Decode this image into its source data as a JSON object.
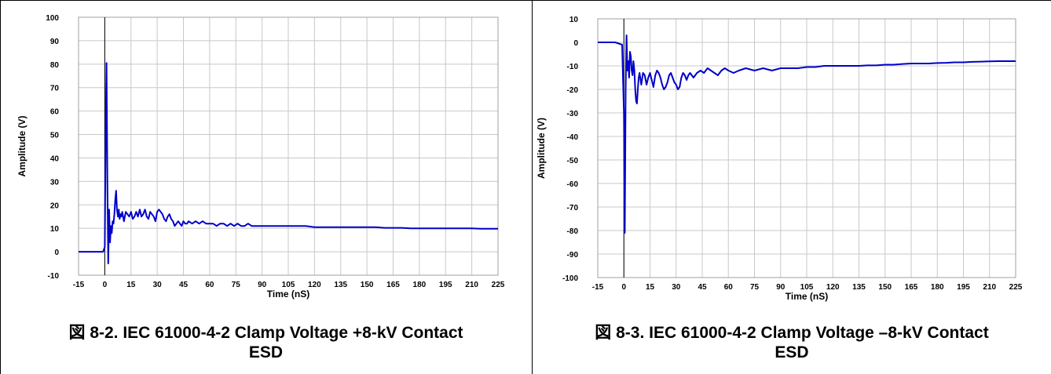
{
  "chart_data": [
    {
      "type": "line",
      "title": "",
      "xlabel": "Time (nS)",
      "ylabel": "Amplitude (V)",
      "xlim": [
        -15,
        225
      ],
      "ylim": [
        -10,
        100
      ],
      "xticks": [
        -15,
        0,
        15,
        30,
        45,
        60,
        75,
        90,
        105,
        120,
        135,
        150,
        165,
        180,
        195,
        210,
        225
      ],
      "yticks": [
        -10,
        0,
        10,
        20,
        30,
        40,
        50,
        60,
        70,
        80,
        90,
        100
      ],
      "grid": true,
      "legend": "none",
      "color": "#0000c8",
      "series": [
        {
          "x": [
            -15,
            -10,
            -5,
            -1,
            0,
            0.5,
            1.0,
            1.5,
            2.0,
            2.5,
            3.0,
            3.5,
            4,
            4.5,
            5,
            5.5,
            6,
            6.5,
            7,
            7.5,
            8,
            8.5,
            9,
            9.5,
            10,
            11,
            12,
            13,
            14,
            15,
            16,
            17,
            18,
            19,
            20,
            21,
            22,
            23,
            24,
            25,
            26,
            27,
            28,
            29,
            30,
            31,
            32,
            33,
            34,
            35,
            36,
            37,
            38,
            39,
            40,
            41,
            42,
            43,
            44,
            45,
            46,
            47,
            48,
            50,
            52,
            54,
            56,
            58,
            60,
            62,
            64,
            66,
            68,
            70,
            72,
            74,
            76,
            78,
            80,
            82,
            84,
            86,
            88,
            90,
            93,
            96,
            100,
            105,
            110,
            115,
            120,
            125,
            130,
            135,
            140,
            145,
            150,
            155,
            160,
            165,
            170,
            175,
            180,
            185,
            190,
            195,
            200,
            205,
            210,
            215,
            220,
            225
          ],
          "y": [
            0,
            0,
            0,
            0,
            2,
            50,
            80.5,
            30,
            -5,
            18,
            4,
            11,
            8,
            13,
            12,
            16,
            22,
            26,
            18,
            15,
            18,
            14,
            16,
            15,
            17,
            13,
            17,
            16,
            15,
            17,
            14,
            15,
            17,
            15,
            18,
            15,
            16,
            18,
            15,
            14,
            17,
            16,
            15,
            13,
            17,
            18,
            17,
            16,
            14,
            13,
            15,
            16,
            14,
            13,
            11,
            12,
            13,
            12,
            11,
            13,
            12,
            12,
            13,
            12,
            13,
            12,
            13,
            12,
            12,
            12,
            11,
            12,
            12,
            11,
            12,
            11,
            12,
            11,
            11,
            12,
            11,
            11,
            11,
            11,
            11,
            11,
            11,
            11,
            11,
            11,
            10.5,
            10.5,
            10.5,
            10.5,
            10.5,
            10.5,
            10.5,
            10.5,
            10.2,
            10.2,
            10.2,
            10,
            10,
            10,
            10,
            10,
            10,
            10,
            10,
            9.8,
            9.8,
            9.8
          ]
        }
      ]
    },
    {
      "type": "line",
      "title": "",
      "xlabel": "Time (nS)",
      "ylabel": "Amplitude (V)",
      "xlim": [
        -15,
        225
      ],
      "ylim": [
        -100,
        10
      ],
      "xticks": [
        -15,
        0,
        15,
        30,
        45,
        60,
        75,
        90,
        105,
        120,
        135,
        150,
        165,
        180,
        195,
        210,
        225
      ],
      "yticks": [
        -100,
        -90,
        -80,
        -70,
        -60,
        -50,
        -40,
        -30,
        -20,
        -10,
        0,
        10
      ],
      "grid": true,
      "legend": "none",
      "color": "#0000c8",
      "series": [
        {
          "x": [
            -15,
            -10,
            -5,
            -1,
            0,
            0.5,
            1,
            1.5,
            2,
            2.5,
            3,
            3.5,
            4,
            4.5,
            5,
            5.5,
            6,
            6.5,
            7,
            7.5,
            8,
            8.5,
            9,
            10,
            11,
            12,
            13,
            14,
            15,
            16,
            17,
            18,
            19,
            20,
            21,
            22,
            23,
            24,
            25,
            26,
            27,
            28,
            29,
            30,
            31,
            32,
            33,
            34,
            35,
            36,
            37,
            38,
            40,
            42,
            44,
            46,
            48,
            50,
            52,
            54,
            56,
            58,
            60,
            63,
            66,
            70,
            75,
            80,
            85,
            90,
            95,
            100,
            105,
            110,
            115,
            120,
            125,
            130,
            135,
            140,
            145,
            150,
            155,
            160,
            165,
            170,
            175,
            180,
            185,
            190,
            195,
            200,
            205,
            210,
            215,
            220,
            225
          ],
          "y": [
            0,
            0,
            0,
            -1,
            -30,
            -81,
            -20,
            3,
            -12,
            -8,
            -15,
            -4,
            -6,
            -12,
            -14,
            -8,
            -12,
            -20,
            -25,
            -26,
            -20,
            -15,
            -13,
            -18,
            -13,
            -14,
            -18,
            -15,
            -13,
            -16,
            -19,
            -14,
            -12,
            -13,
            -15,
            -18,
            -20,
            -19,
            -17,
            -14,
            -13,
            -15,
            -17,
            -18,
            -20,
            -19,
            -15,
            -13,
            -14,
            -16,
            -14,
            -13,
            -15,
            -13,
            -12,
            -13,
            -11,
            -12,
            -13,
            -14,
            -12,
            -11,
            -12,
            -13,
            -12,
            -11,
            -12,
            -11,
            -12,
            -11,
            -11,
            -11,
            -10.5,
            -10.5,
            -10,
            -10,
            -10,
            -10,
            -10,
            -9.8,
            -9.8,
            -9.5,
            -9.5,
            -9.2,
            -9,
            -9,
            -9,
            -8.8,
            -8.7,
            -8.5,
            -8.5,
            -8.3,
            -8.2,
            -8.1,
            -8,
            -8,
            -8
          ]
        }
      ]
    }
  ],
  "captions": {
    "left_line1": "図 8-2. IEC 61000-4-2 Clamp Voltage +8-kV Contact",
    "left_line2": "ESD",
    "right_line1": "図 8-3. IEC 61000-4-2 Clamp Voltage –8-kV Contact",
    "right_line2": "ESD"
  }
}
